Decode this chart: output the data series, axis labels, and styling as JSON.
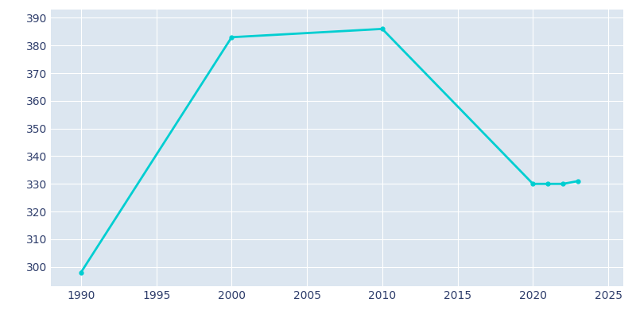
{
  "years": [
    1990,
    2000,
    2010,
    2020,
    2021,
    2022,
    2023
  ],
  "population": [
    298,
    383,
    386,
    330,
    330,
    330,
    331
  ],
  "line_color": "#00CED1",
  "marker_color": "#00CED1",
  "bg_color": "#ffffff",
  "plot_bg_color": "#dce6f0",
  "grid_color": "#ffffff",
  "tick_label_color": "#2e3d6b",
  "xlim": [
    1988,
    2026
  ],
  "ylim": [
    293,
    393
  ],
  "yticks": [
    300,
    310,
    320,
    330,
    340,
    350,
    360,
    370,
    380,
    390
  ],
  "xticks": [
    1990,
    1995,
    2000,
    2005,
    2010,
    2015,
    2020,
    2025
  ],
  "line_width": 2.0,
  "marker_size": 3.5
}
